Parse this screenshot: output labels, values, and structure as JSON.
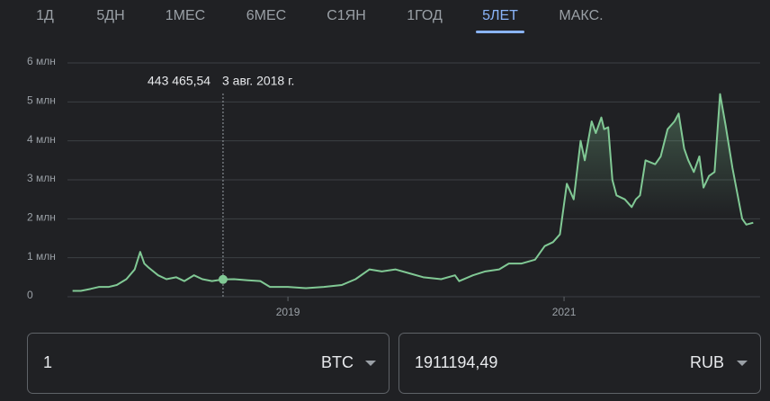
{
  "tabs": [
    "1Д",
    "5ДН",
    "1МЕС",
    "6МЕС",
    "С1ЯН",
    "1ГОД",
    "5ЛЕТ",
    "МАКС."
  ],
  "active_tab": 6,
  "chart_data": {
    "type": "line",
    "x": [
      2017.44,
      2017.5,
      2017.57,
      2017.63,
      2017.7,
      2017.76,
      2017.83,
      2017.89,
      2017.93,
      2017.96,
      2017.99,
      2018.06,
      2018.12,
      2018.19,
      2018.25,
      2018.32,
      2018.38,
      2018.45,
      2018.53,
      2018.61,
      2018.71,
      2018.8,
      2018.87,
      2019.0,
      2019.13,
      2019.26,
      2019.39,
      2019.49,
      2019.59,
      2019.68,
      2019.78,
      2019.88,
      2019.98,
      2020.11,
      2020.21,
      2020.24,
      2020.34,
      2020.43,
      2020.53,
      2020.6,
      2020.69,
      2020.79,
      2020.86,
      2020.92,
      2020.97,
      2021.02,
      2021.07,
      2021.12,
      2021.15,
      2021.2,
      2021.23,
      2021.27,
      2021.29,
      2021.32,
      2021.35,
      2021.38,
      2021.44,
      2021.49,
      2021.52,
      2021.55,
      2021.59,
      2021.66,
      2021.7,
      2021.75,
      2021.8,
      2021.83,
      2021.87,
      2021.9,
      2021.94,
      2021.98,
      2022.01,
      2022.05,
      2022.09,
      2022.13,
      2022.17,
      2022.22,
      2022.29,
      2022.32,
      2022.37
    ],
    "series": [
      {
        "name": "BTC",
        "color": "#81c995",
        "values": [
          150000,
          150000,
          200000,
          250000,
          250000,
          300000,
          450000,
          700000,
          1150000,
          850000,
          750000,
          550000,
          450000,
          500000,
          400000,
          550000,
          450000,
          400000,
          443465.54,
          450000,
          420000,
          400000,
          250000,
          250000,
          220000,
          250000,
          300000,
          450000,
          700000,
          650000,
          700000,
          600000,
          500000,
          450000,
          550000,
          400000,
          550000,
          650000,
          700000,
          850000,
          850000,
          950000,
          1300000,
          1400000,
          1600000,
          2900000,
          2500000,
          4000000,
          3500000,
          4500000,
          4200000,
          4600000,
          4300000,
          4350000,
          3000000,
          2600000,
          2500000,
          2300000,
          2500000,
          2600000,
          3500000,
          3400000,
          3600000,
          4300000,
          4500000,
          4700000,
          3800000,
          3500000,
          3200000,
          3600000,
          2800000,
          3100000,
          3200000,
          5200000,
          4400000,
          3300000,
          2000000,
          1850000,
          1900000
        ]
      }
    ],
    "xlim": [
      2017.11,
      2022.42
    ],
    "xticks": [
      2019,
      2021
    ],
    "ylim": [
      0,
      6000000
    ],
    "yticks": [
      0,
      {
        "value": 1000000,
        "label": "1 млн"
      },
      {
        "value": 2000000,
        "label": "2 млн"
      },
      {
        "value": 3000000,
        "label": "3 млн"
      },
      {
        "value": 4000000,
        "label": "4 млн"
      },
      {
        "value": 5000000,
        "label": "5 млн"
      },
      {
        "value": 6000000,
        "label": "6 млн"
      }
    ],
    "grid": true,
    "tooltip": {
      "point": 18,
      "value": "443 465,54",
      "date": "3 авг. 2018 г."
    }
  },
  "converter": {
    "from_amount": "1",
    "from_currency": "BTC",
    "to_amount": "1911194,49",
    "to_currency": "RUB"
  }
}
